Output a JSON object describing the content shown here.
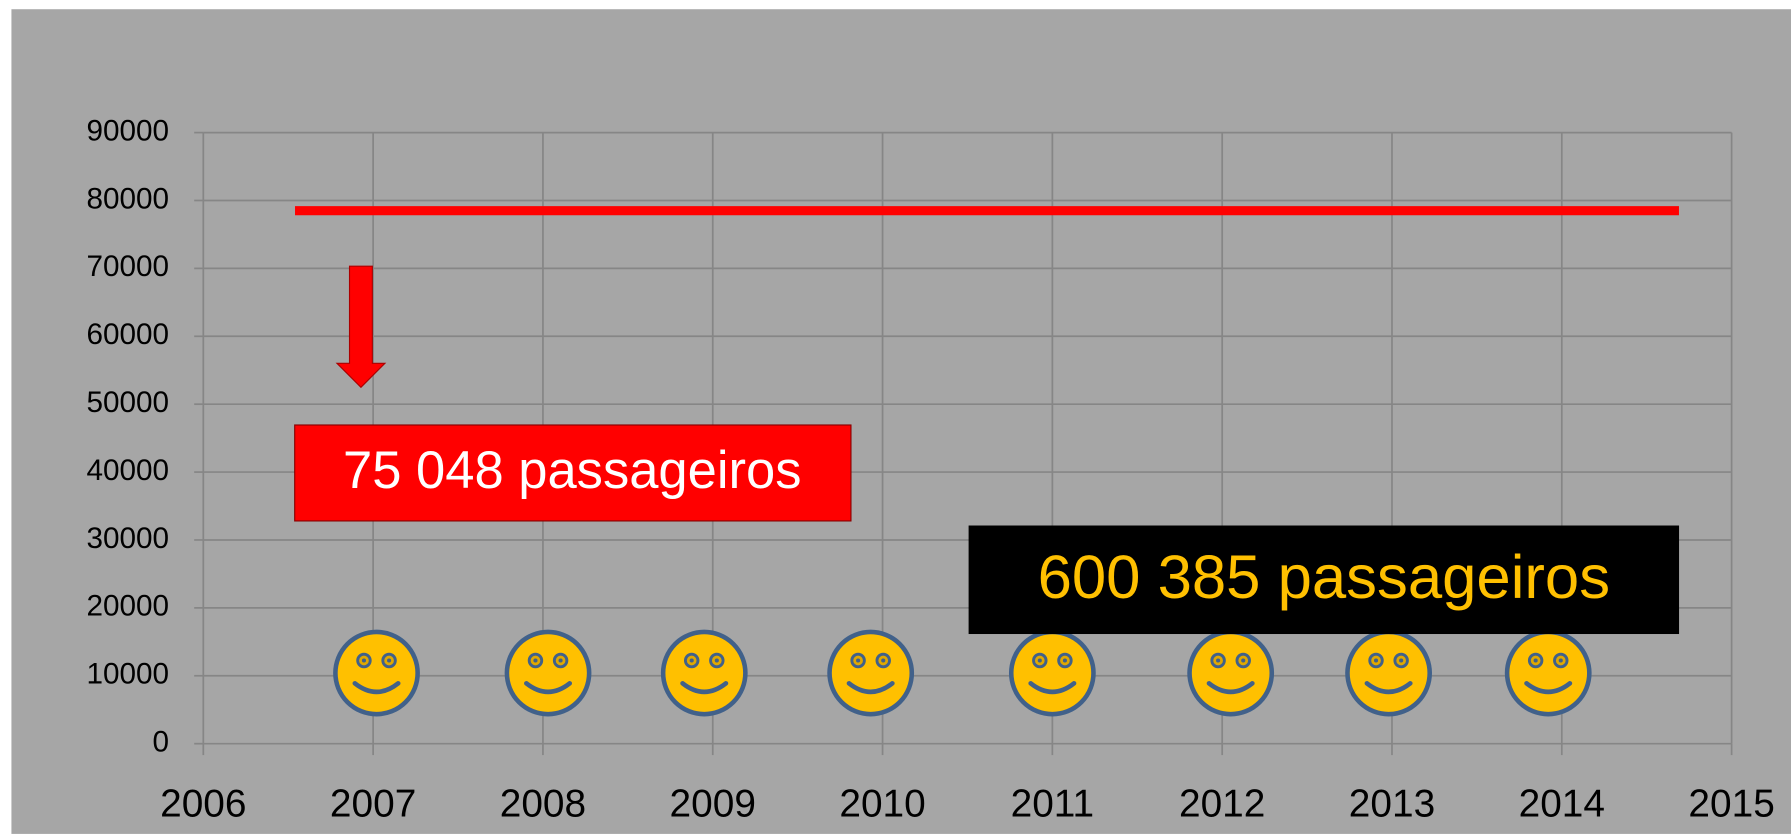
{
  "chart_data": {
    "type": "scatter",
    "xlim": [
      2006,
      2015
    ],
    "xticks": [
      2006,
      2007,
      2008,
      2009,
      2010,
      2011,
      2012,
      2013,
      2014,
      2015
    ],
    "ylim": [
      0,
      90000
    ],
    "yticks": [
      0,
      10000,
      20000,
      30000,
      40000,
      50000,
      60000,
      70000,
      80000,
      90000
    ],
    "grid": true,
    "series": [
      {
        "marker": "line",
        "color": "#ff0000",
        "x": [
          2006.54,
          2014.69
        ],
        "values": [
          78500,
          78500
        ]
      },
      {
        "marker": "smiley",
        "color": "#ffc000",
        "x": [
          2007.02,
          2008.03,
          2008.95,
          2009.93,
          2011.0,
          2012.05,
          2012.98,
          2013.92
        ],
        "values": [
          10400,
          10400,
          10400,
          10400,
          10400,
          10400,
          10400,
          10400
        ]
      }
    ],
    "annotations": [
      "75 048 passageiros",
      "600 385 passageiros"
    ]
  }
}
